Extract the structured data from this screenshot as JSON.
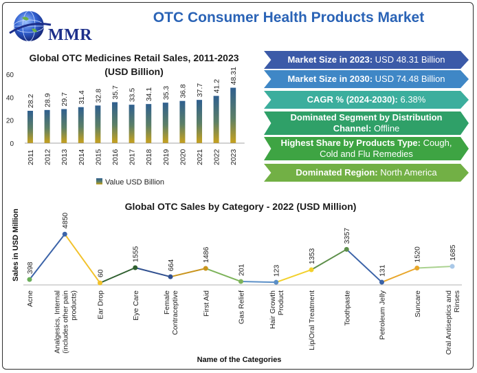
{
  "header": {
    "logo_text": "MMR",
    "title": "OTC Consumer Health Products Market"
  },
  "panels": [
    {
      "label": "Market Size in 2023:",
      "value": "USD 48.31 Billion",
      "color": "#3b5aa8"
    },
    {
      "label": "Market Size in 2030:",
      "value": "USD 74.48 Billion",
      "color": "#3f87c6"
    },
    {
      "label": "CAGR % (2024-2030):",
      "value": "6.38%",
      "color": "#3cae9d"
    },
    {
      "label": "Dominated Segment by Distribution Channel:",
      "value": "Offline",
      "color": "#2fa068"
    },
    {
      "label": "Highest Share by Products Type:",
      "value": "Cough, Cold and Flu Remedies",
      "color": "#3ea443"
    },
    {
      "label": "Dominated Region:",
      "value": "North America",
      "color": "#72b045"
    }
  ],
  "chart_data": [
    {
      "type": "bar",
      "title": "Global OTC Medicines Retail Sales, 2011-2023 (USD Billion)",
      "categories": [
        "2011",
        "2012",
        "2013",
        "2014",
        "2015",
        "2016",
        "2017",
        "2018",
        "2019",
        "2020",
        "2021",
        "2022",
        "2023"
      ],
      "series": [
        {
          "name": "Value USD Billion",
          "values": [
            28.2,
            28.9,
            29.7,
            31.4,
            32.8,
            35.7,
            33.5,
            34.1,
            35.3,
            36.8,
            37.7,
            41.2,
            48.31
          ]
        }
      ],
      "data_labels": [
        "28.2",
        "28.9",
        "29.7",
        "31.4",
        "32.8",
        "35.7",
        "33.5",
        "34.1",
        "35.3",
        "36.8",
        "37.7",
        "41.2",
        "48.31"
      ],
      "yticks": [
        0,
        20,
        40,
        60
      ],
      "ylim": [
        0,
        60
      ],
      "legend": "bottom",
      "grid": false
    },
    {
      "type": "line",
      "title": "Global OTC Sales by Category - 2022 (USD Million)",
      "xlabel": "Name of the Categories",
      "ylabel": "Sales in USD Million",
      "categories": [
        "Acne",
        "Analgesics, Internal (includes other pain products)",
        "Ear Drop",
        "Eye Care",
        "Female Contraceptive",
        "First Aid",
        "Gas Relief",
        "Hair Growth Product",
        "Lip/Oral Treatment",
        "Toothpaste",
        "Petroleum Jelly",
        "Suncare",
        "Oral Antiseptics and Rinses"
      ],
      "category_lines": [
        [
          "Acne"
        ],
        [
          "Analgesics, Internal",
          "(includes other pain",
          "products)"
        ],
        [
          "Ear Drop"
        ],
        [
          "Eye Care"
        ],
        [
          "Female",
          "Contraceptive"
        ],
        [
          "First Aid"
        ],
        [
          "Gas Relief"
        ],
        [
          "Hair Growth",
          "Product"
        ],
        [
          "Lip/Oral Treatment"
        ],
        [
          "Toothpaste"
        ],
        [
          "Petroleum Jelly"
        ],
        [
          "Suncare"
        ],
        [
          "Oral Antiseptics and",
          "Rinses"
        ]
      ],
      "values": [
        398,
        4850,
        60,
        1555,
        664,
        1486,
        201,
        123,
        1353,
        3357,
        131,
        1520,
        1685
      ],
      "data_labels": [
        "398",
        "4850",
        "60",
        "1555",
        "664",
        "1486",
        "201",
        "123",
        "1353",
        "3357",
        "131",
        "1520",
        "1685"
      ],
      "ylim": [
        0,
        5000
      ],
      "grid": false
    }
  ]
}
